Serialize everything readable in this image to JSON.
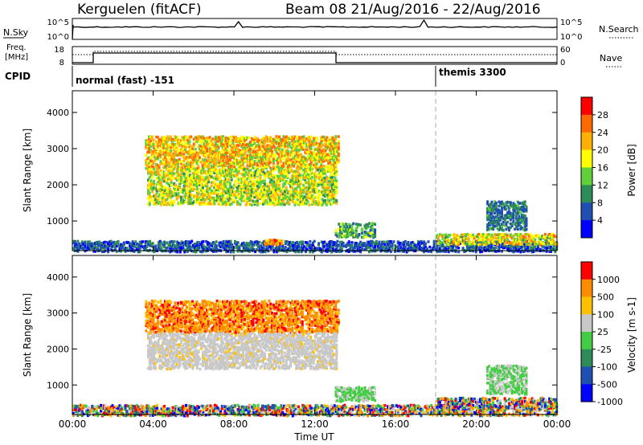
{
  "header": {
    "station": "Kerguelen (fitACF)",
    "beam_info": "Beam 08 21/Aug/2016 - 22/Aug/2016"
  },
  "status_panels": {
    "nsky_label": "N.Sky",
    "nsky_ticks": [
      "10^5",
      "10^0"
    ],
    "nsearch_ticks": [
      "10^5",
      "10^0"
    ],
    "nsearch_label": "N.Search",
    "freq_label_line1": "Freq.",
    "freq_label_line2": "[MHz]",
    "freq_ticks": [
      "18",
      "8"
    ],
    "nave_ticks": [
      "60",
      "0"
    ],
    "nave_label": "Nave",
    "cpid_label": "CPID",
    "cpid_segments": [
      {
        "start_hour": 0,
        "name": "normal (fast) -151"
      },
      {
        "start_hour": 18,
        "name": "themis 3300"
      }
    ]
  },
  "x_axis": {
    "label": "Time UT",
    "ticks": [
      "00:00",
      "04:00",
      "08:00",
      "12:00",
      "16:00",
      "20:00",
      "00:00"
    ],
    "range_hours": [
      0,
      24
    ]
  },
  "chart_data": [
    {
      "type": "heatmap",
      "name": "power",
      "ylabel": "Slant Range [km]",
      "yticks": [
        "1000",
        "2000",
        "3000",
        "4000"
      ],
      "ylim": [
        180,
        4600
      ],
      "colorbar_label": "Power [dB]",
      "colorbar_ticks": [
        "4",
        "8",
        "12",
        "16",
        "20",
        "24",
        "28"
      ],
      "colorbar_range": [
        0,
        30
      ],
      "colorscale": [
        "#0000ff",
        "#1f4fb0",
        "#2e8b57",
        "#5fcf3a",
        "#ffff00",
        "#ffb000",
        "#ff6a00",
        "#ff0000"
      ],
      "mode_change_hour": 18,
      "echo_regions": [
        {
          "t": [
            3.6,
            13.2
          ],
          "r": [
            2500,
            3400
          ],
          "v": [
            12,
            26
          ]
        },
        {
          "t": [
            3.7,
            13.1
          ],
          "r": [
            1500,
            2500
          ],
          "v": [
            10,
            22
          ]
        },
        {
          "t": [
            0.0,
            24.0
          ],
          "r": [
            200,
            500
          ],
          "v": [
            2,
            10
          ]
        },
        {
          "t": [
            9.5,
            10.4
          ],
          "r": [
            400,
            550
          ],
          "v": [
            18,
            28
          ]
        },
        {
          "t": [
            13.0,
            15.0
          ],
          "r": [
            600,
            1000
          ],
          "v": [
            6,
            16
          ]
        },
        {
          "t": [
            18.0,
            24.0
          ],
          "r": [
            400,
            700
          ],
          "v": [
            10,
            24
          ]
        },
        {
          "t": [
            20.5,
            22.5
          ],
          "r": [
            800,
            1600
          ],
          "v": [
            4,
            12
          ]
        }
      ]
    },
    {
      "type": "heatmap",
      "name": "velocity",
      "ylabel": "Slant Range [km]",
      "yticks": [
        "1000",
        "2000",
        "3000",
        "4000"
      ],
      "ylim": [
        180,
        4600
      ],
      "colorbar_label": "Velocity [m s-1]",
      "colorbar_ticks": [
        "1000",
        "500",
        "100",
        "25",
        "-25",
        "-100",
        "-500",
        "-1000"
      ],
      "colorscale": [
        "#ff0000",
        "#ff8c00",
        "#ffc000",
        "#c8c8c8",
        "#44cc44",
        "#2e8b57",
        "#1f4fb0",
        "#0000ff"
      ],
      "mode_change_hour": 18,
      "echo_regions": [
        {
          "t": [
            3.6,
            13.2
          ],
          "r": [
            2500,
            3400
          ],
          "class": "away_fast"
        },
        {
          "t": [
            3.7,
            13.1
          ],
          "r": [
            1500,
            2500
          ],
          "class": "ground_scatter"
        },
        {
          "t": [
            0.0,
            24.0
          ],
          "r": [
            200,
            500
          ],
          "class": "mixed_low"
        },
        {
          "t": [
            13.0,
            15.0
          ],
          "r": [
            600,
            1000
          ],
          "class": "toward_slow"
        },
        {
          "t": [
            18.0,
            24.0
          ],
          "r": [
            400,
            700
          ],
          "class": "mixed"
        },
        {
          "t": [
            20.5,
            22.5
          ],
          "r": [
            800,
            1600
          ],
          "class": "toward_slow"
        }
      ]
    }
  ]
}
